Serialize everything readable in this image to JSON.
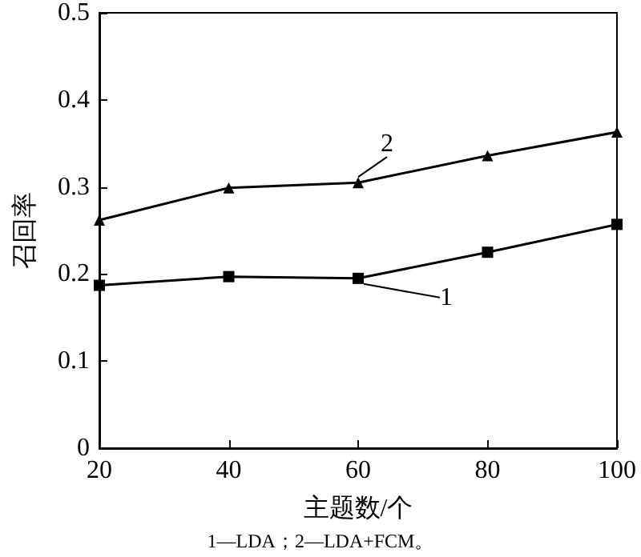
{
  "chart_data": {
    "type": "line",
    "xlabel": "主题数/个",
    "ylabel": "召回率",
    "x": [
      20,
      40,
      60,
      80,
      100
    ],
    "series": [
      {
        "name": "1",
        "color": "#000000",
        "marker": "square",
        "values": [
          0.187,
          0.197,
          0.195,
          0.225,
          0.257
        ]
      },
      {
        "name": "2",
        "color": "#000000",
        "marker": "triangle",
        "values": [
          0.262,
          0.299,
          0.305,
          0.336,
          0.363
        ]
      }
    ],
    "xlim": [
      20,
      100
    ],
    "xticks": [
      20,
      40,
      60,
      80,
      100
    ],
    "ylim": [
      0,
      0.5
    ],
    "yticks": [
      0,
      0.1,
      0.2,
      0.3,
      0.4,
      0.5
    ],
    "grid": false,
    "line_style": "solid",
    "annotations": [
      "1—LDA；2—LDA+FCM。"
    ]
  }
}
